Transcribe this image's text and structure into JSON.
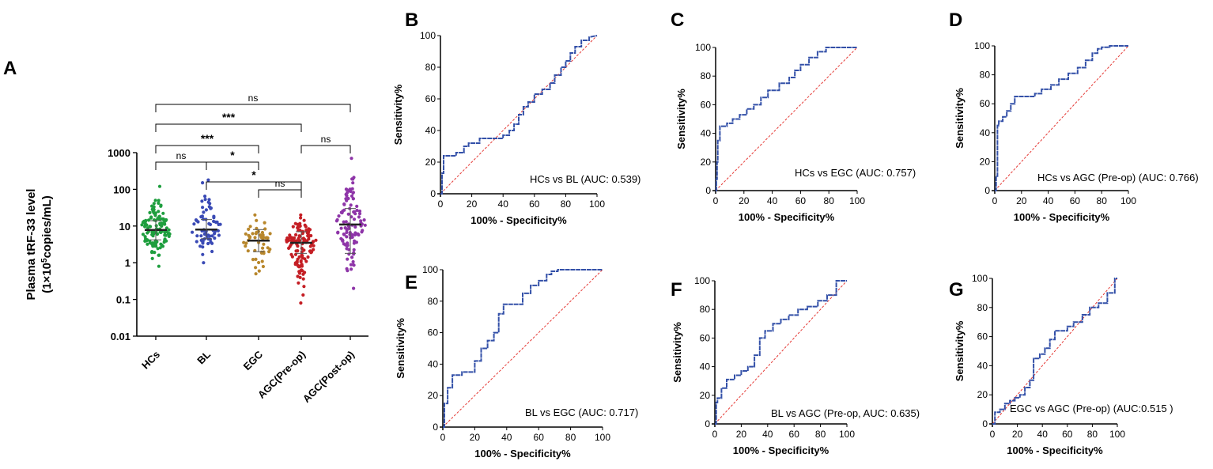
{
  "colors": {
    "roc_line": "#3350a8",
    "diagonal": "#e53935",
    "hcs": "#1e9e3e",
    "bl": "#3a4ab5",
    "egc": "#b8872c",
    "agc_pre": "#c41e24",
    "agc_post": "#8e35a8"
  },
  "chart_data": [
    {
      "panel": "A",
      "type": "scatter",
      "title": "",
      "ylabel_line1": "Plasma tRF-33 level",
      "ylabel_line2_prefix": "(1×10",
      "ylabel_line2_sup": "5",
      "ylabel_line2_suffix": "copies/mL)",
      "yscale": "log",
      "ylim": [
        0.01,
        1000
      ],
      "yticks": [
        0.01,
        0.1,
        1,
        10,
        100,
        1000
      ],
      "ytick_labels": [
        "0.01",
        "0.1",
        "1",
        "10",
        "100",
        "1000"
      ],
      "categories": [
        "HCs",
        "BL",
        "EGC",
        "AGC(Pre-op)",
        "AGC(Post-op)"
      ],
      "series_colors": [
        "#1e9e3e",
        "#3a4ab5",
        "#b8872c",
        "#c41e24",
        "#8e35a8"
      ],
      "point_counts": [
        120,
        70,
        50,
        120,
        110
      ],
      "medians": [
        7.8,
        8.0,
        4.0,
        3.5,
        11.0
      ],
      "q1": [
        4.2,
        4.5,
        2.0,
        1.8,
        1.8
      ],
      "q3": [
        14.0,
        15.0,
        8.0,
        7.0,
        30.0
      ],
      "spread_low": [
        0.8,
        1.0,
        0.5,
        0.08,
        0.2
      ],
      "spread_high": [
        120,
        180,
        20,
        20,
        700
      ],
      "comparisons": [
        {
          "from": 0,
          "to": 4,
          "label": "ns"
        },
        {
          "from": 0,
          "to": 3,
          "label": "***"
        },
        {
          "from": 3,
          "to": 4,
          "label": "ns"
        },
        {
          "from": 0,
          "to": 2,
          "label": "***"
        },
        {
          "from": 0,
          "to": 1,
          "label": "ns"
        },
        {
          "from": 1,
          "to": 2,
          "label": "*"
        },
        {
          "from": 1,
          "to": 3,
          "label": "*"
        },
        {
          "from": 2,
          "to": 3,
          "label": "ns"
        }
      ]
    },
    {
      "panel": "B",
      "type": "line",
      "xlabel": "100% - Specificity%",
      "ylabel": "Sensitivity%",
      "xlim": [
        0,
        100
      ],
      "ylim": [
        0,
        100
      ],
      "ticks": [
        "0",
        "20",
        "40",
        "60",
        "80",
        "100"
      ],
      "annotation": "HCs vs BL (AUC: 0.539)",
      "x": [
        0,
        1,
        1,
        2,
        2,
        10,
        10,
        15,
        15,
        18,
        18,
        25,
        25,
        40,
        40,
        44,
        44,
        47,
        47,
        50,
        50,
        53,
        53,
        56,
        56,
        60,
        60,
        65,
        65,
        70,
        70,
        73,
        73,
        77,
        77,
        80,
        80,
        83,
        83,
        86,
        86,
        90,
        90,
        95,
        95,
        100
      ],
      "y": [
        0,
        0,
        13,
        13,
        24,
        24,
        26,
        26,
        30,
        30,
        32,
        32,
        35,
        35,
        37,
        37,
        40,
        40,
        44,
        44,
        50,
        50,
        55,
        55,
        58,
        58,
        63,
        63,
        66,
        66,
        70,
        70,
        75,
        75,
        80,
        80,
        84,
        84,
        89,
        89,
        93,
        93,
        97,
        97,
        99,
        100
      ]
    },
    {
      "panel": "C",
      "type": "line",
      "xlabel": "100% - Specificity%",
      "ylabel": "Sensitivity%",
      "xlim": [
        0,
        100
      ],
      "ylim": [
        0,
        100
      ],
      "ticks": [
        "0",
        "20",
        "40",
        "60",
        "80",
        "100"
      ],
      "annotation": "HCs vs EGC (AUC: 0.757)",
      "x": [
        0,
        0.5,
        0.5,
        1,
        1,
        1.5,
        1.5,
        3,
        3,
        8,
        8,
        12,
        12,
        17,
        17,
        22,
        22,
        27,
        27,
        32,
        32,
        37,
        37,
        45,
        45,
        52,
        52,
        56,
        56,
        60,
        60,
        66,
        66,
        72,
        72,
        78,
        78,
        100
      ],
      "y": [
        0,
        0,
        8,
        8,
        20,
        20,
        35,
        35,
        45,
        45,
        47,
        47,
        50,
        50,
        53,
        53,
        57,
        57,
        60,
        60,
        65,
        65,
        70,
        70,
        75,
        75,
        79,
        79,
        84,
        84,
        88,
        88,
        93,
        93,
        97,
        97,
        100,
        100
      ]
    },
    {
      "panel": "D",
      "type": "line",
      "xlabel": "100% - Specificity%",
      "ylabel": "Sensitivity%",
      "xlim": [
        0,
        100
      ],
      "ylim": [
        0,
        100
      ],
      "ticks": [
        "0",
        "20",
        "40",
        "60",
        "80",
        "100"
      ],
      "annotation": "HCs vs AGC (Pre-op) (AUC: 0.766)",
      "x": [
        0,
        1,
        1,
        2,
        2,
        3,
        3,
        6,
        6,
        9,
        9,
        12,
        12,
        15,
        15,
        30,
        30,
        35,
        35,
        42,
        42,
        48,
        48,
        55,
        55,
        62,
        62,
        68,
        68,
        73,
        73,
        77,
        77,
        80,
        80,
        86,
        86,
        100
      ],
      "y": [
        0,
        0,
        10,
        10,
        45,
        45,
        48,
        48,
        51,
        51,
        55,
        55,
        60,
        60,
        65,
        65,
        67,
        67,
        70,
        70,
        73,
        73,
        77,
        77,
        81,
        81,
        85,
        85,
        90,
        90,
        95,
        95,
        98,
        98,
        99,
        99,
        100,
        100
      ]
    },
    {
      "panel": "E",
      "type": "line",
      "xlabel": "100% - Specificity%",
      "ylabel": "Sensitivity%",
      "xlim": [
        0,
        100
      ],
      "ylim": [
        0,
        100
      ],
      "ticks": [
        "0",
        "20",
        "40",
        "60",
        "80",
        "100"
      ],
      "annotation": "BL vs EGC (AUC: 0.717)",
      "x": [
        0,
        1,
        1,
        3,
        3,
        6,
        6,
        12,
        12,
        20,
        20,
        24,
        24,
        28,
        28,
        32,
        32,
        35,
        35,
        38,
        38,
        45,
        45,
        50,
        50,
        55,
        55,
        60,
        60,
        65,
        65,
        68,
        68,
        72,
        72,
        100
      ],
      "y": [
        0,
        0,
        15,
        15,
        25,
        25,
        33,
        33,
        35,
        35,
        42,
        42,
        50,
        50,
        55,
        55,
        60,
        60,
        72,
        72,
        78,
        78,
        78,
        78,
        85,
        85,
        90,
        90,
        93,
        93,
        97,
        97,
        99,
        99,
        100,
        100
      ]
    },
    {
      "panel": "F",
      "type": "line",
      "xlabel": "100% - Specificity%",
      "ylabel": "Sensitivity%",
      "xlim": [
        0,
        100
      ],
      "ylim": [
        0,
        100
      ],
      "ticks": [
        "0",
        "20",
        "40",
        "60",
        "80",
        "100"
      ],
      "annotation": "BL vs AGC (Pre-op, AUC: 0.635)",
      "x": [
        0,
        1,
        1,
        2,
        2,
        5,
        5,
        9,
        9,
        15,
        15,
        20,
        20,
        25,
        25,
        30,
        30,
        34,
        34,
        38,
        38,
        44,
        44,
        50,
        50,
        56,
        56,
        63,
        63,
        70,
        70,
        78,
        78,
        85,
        85,
        92,
        92,
        100
      ],
      "y": [
        0,
        0,
        15,
        15,
        18,
        18,
        25,
        25,
        31,
        31,
        34,
        34,
        37,
        37,
        40,
        40,
        48,
        48,
        60,
        60,
        65,
        65,
        70,
        70,
        73,
        73,
        76,
        76,
        80,
        80,
        82,
        82,
        86,
        86,
        90,
        90,
        100,
        100
      ]
    },
    {
      "panel": "G",
      "type": "line",
      "xlabel": "100% - Specificity%",
      "ylabel": "Sensitivity%",
      "xlim": [
        0,
        100
      ],
      "ylim": [
        0,
        100
      ],
      "ticks": [
        "0",
        "20",
        "40",
        "60",
        "80",
        "100"
      ],
      "annotation": "EGC vs AGC (Pre-op) (AUC:0.515 )",
      "x": [
        0,
        2,
        2,
        6,
        6,
        10,
        10,
        14,
        14,
        18,
        18,
        22,
        22,
        26,
        26,
        30,
        30,
        33,
        33,
        38,
        38,
        42,
        42,
        46,
        46,
        50,
        50,
        60,
        60,
        65,
        65,
        72,
        72,
        78,
        78,
        85,
        85,
        92,
        92,
        98,
        98,
        100
      ],
      "y": [
        0,
        0,
        8,
        8,
        10,
        10,
        14,
        14,
        16,
        16,
        18,
        18,
        20,
        20,
        25,
        25,
        30,
        30,
        45,
        45,
        48,
        48,
        52,
        52,
        58,
        58,
        64,
        64,
        67,
        67,
        70,
        70,
        75,
        75,
        80,
        80,
        83,
        83,
        90,
        90,
        100,
        100
      ]
    }
  ]
}
